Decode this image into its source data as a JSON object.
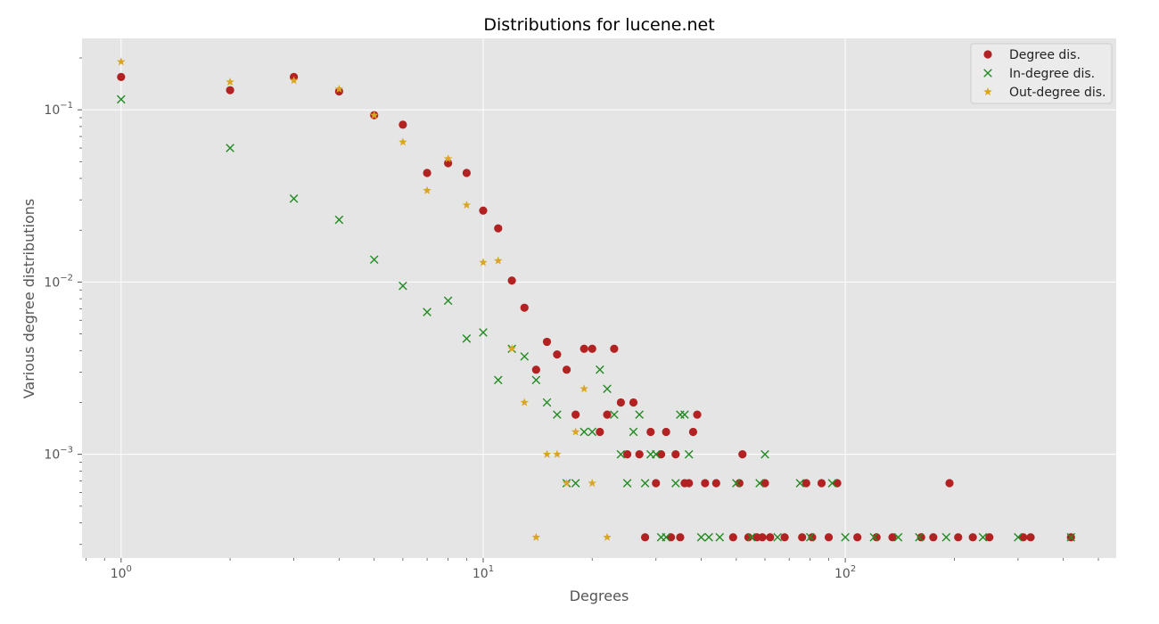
{
  "chart_data": {
    "type": "scatter",
    "title": "Distributions for lucene.net",
    "xlabel": "Degrees",
    "ylabel": "Various degree distributions",
    "xscale": "log",
    "yscale": "log",
    "xlim": [
      0.78,
      560
    ],
    "ylim": [
      0.00025,
      0.26
    ],
    "x_ticks": [
      {
        "value": 1,
        "base": "10",
        "exp": "0"
      },
      {
        "value": 10,
        "base": "10",
        "exp": "1"
      },
      {
        "value": 100,
        "base": "10",
        "exp": "2"
      }
    ],
    "y_ticks": [
      {
        "value": 0.001,
        "base": "10",
        "exp": "−3"
      },
      {
        "value": 0.01,
        "base": "10",
        "exp": "−2"
      },
      {
        "value": 0.1,
        "base": "10",
        "exp": "−1"
      }
    ],
    "grid": true,
    "legend_position": "top-right",
    "colors": {
      "background": "#e5e5e5",
      "grid": "#ffffff",
      "degree": "#b22222",
      "in_degree": "#228b22",
      "out_degree": "#daa520"
    },
    "series": [
      {
        "name": "Degree dis.",
        "marker": "circle",
        "points": [
          [
            1,
            0.155
          ],
          [
            2,
            0.13
          ],
          [
            3,
            0.155
          ],
          [
            4,
            0.128
          ],
          [
            5,
            0.093
          ],
          [
            6,
            0.082
          ],
          [
            7,
            0.043
          ],
          [
            8,
            0.049
          ],
          [
            9,
            0.043
          ],
          [
            10,
            0.026
          ],
          [
            11,
            0.0205
          ],
          [
            12,
            0.0102
          ],
          [
            13,
            0.0071
          ],
          [
            14,
            0.0031
          ],
          [
            15,
            0.0045
          ],
          [
            16,
            0.0038
          ],
          [
            17,
            0.0031
          ],
          [
            18,
            0.0017
          ],
          [
            19,
            0.0041
          ],
          [
            20,
            0.0041
          ],
          [
            21,
            0.00135
          ],
          [
            22,
            0.0017
          ],
          [
            23,
            0.0041
          ],
          [
            24,
            0.002
          ],
          [
            25,
            0.001
          ],
          [
            26,
            0.002
          ],
          [
            27,
            0.001
          ],
          [
            28,
            0.00033
          ],
          [
            29,
            0.00135
          ],
          [
            30,
            0.00068
          ],
          [
            31,
            0.001
          ],
          [
            32,
            0.00135
          ],
          [
            33,
            0.00033
          ],
          [
            34,
            0.001
          ],
          [
            35,
            0.00033
          ],
          [
            36,
            0.00068
          ],
          [
            37,
            0.00068
          ],
          [
            38,
            0.00135
          ],
          [
            39,
            0.0017
          ],
          [
            41,
            0.00068
          ],
          [
            44,
            0.00068
          ],
          [
            49,
            0.00033
          ],
          [
            51,
            0.00068
          ],
          [
            52,
            0.001
          ],
          [
            54,
            0.00033
          ],
          [
            57,
            0.00033
          ],
          [
            59,
            0.00033
          ],
          [
            60,
            0.00068
          ],
          [
            62,
            0.00033
          ],
          [
            68,
            0.00033
          ],
          [
            76,
            0.00033
          ],
          [
            78,
            0.00068
          ],
          [
            81,
            0.00033
          ],
          [
            86,
            0.00068
          ],
          [
            90,
            0.00033
          ],
          [
            95,
            0.00068
          ],
          [
            108,
            0.00033
          ],
          [
            122,
            0.00033
          ],
          [
            135,
            0.00033
          ],
          [
            162,
            0.00033
          ],
          [
            175,
            0.00033
          ],
          [
            194,
            0.00068
          ],
          [
            205,
            0.00033
          ],
          [
            225,
            0.00033
          ],
          [
            250,
            0.00033
          ],
          [
            310,
            0.00033
          ],
          [
            325,
            0.00033
          ],
          [
            420,
            0.00033
          ]
        ]
      },
      {
        "name": "In-degree dis.",
        "marker": "x",
        "points": [
          [
            1,
            0.115
          ],
          [
            2,
            0.06
          ],
          [
            3,
            0.0305
          ],
          [
            4,
            0.023
          ],
          [
            5,
            0.0135
          ],
          [
            6,
            0.0095
          ],
          [
            7,
            0.0067
          ],
          [
            8,
            0.0078
          ],
          [
            9,
            0.0047
          ],
          [
            10,
            0.0051
          ],
          [
            11,
            0.0027
          ],
          [
            12,
            0.0041
          ],
          [
            13,
            0.0037
          ],
          [
            14,
            0.0027
          ],
          [
            15,
            0.002
          ],
          [
            16,
            0.0017
          ],
          [
            17,
            0.00068
          ],
          [
            18,
            0.00068
          ],
          [
            19,
            0.00135
          ],
          [
            20,
            0.00135
          ],
          [
            21,
            0.0031
          ],
          [
            22,
            0.0024
          ],
          [
            23,
            0.0017
          ],
          [
            24,
            0.001
          ],
          [
            25,
            0.00068
          ],
          [
            26,
            0.00135
          ],
          [
            27,
            0.0017
          ],
          [
            28,
            0.00068
          ],
          [
            29,
            0.001
          ],
          [
            30,
            0.001
          ],
          [
            31,
            0.00033
          ],
          [
            32,
            0.00033
          ],
          [
            34,
            0.00068
          ],
          [
            35,
            0.0017
          ],
          [
            36,
            0.0017
          ],
          [
            37,
            0.001
          ],
          [
            40,
            0.00033
          ],
          [
            42,
            0.00033
          ],
          [
            45,
            0.00033
          ],
          [
            50,
            0.00068
          ],
          [
            55,
            0.00033
          ],
          [
            58,
            0.00068
          ],
          [
            60,
            0.001
          ],
          [
            65,
            0.00033
          ],
          [
            75,
            0.00068
          ],
          [
            80,
            0.00033
          ],
          [
            92,
            0.00068
          ],
          [
            100,
            0.00033
          ],
          [
            120,
            0.00033
          ],
          [
            140,
            0.00033
          ],
          [
            160,
            0.00033
          ],
          [
            190,
            0.00033
          ],
          [
            240,
            0.00033
          ],
          [
            300,
            0.00033
          ],
          [
            420,
            0.00033
          ]
        ]
      },
      {
        "name": "Out-degree dis.",
        "marker": "star",
        "points": [
          [
            1,
            0.19
          ],
          [
            2,
            0.145
          ],
          [
            3,
            0.148
          ],
          [
            4,
            0.132
          ],
          [
            5,
            0.093
          ],
          [
            6,
            0.065
          ],
          [
            7,
            0.034
          ],
          [
            8,
            0.052
          ],
          [
            9,
            0.028
          ],
          [
            10,
            0.013
          ],
          [
            11,
            0.0133
          ],
          [
            12,
            0.0041
          ],
          [
            13,
            0.002
          ],
          [
            14,
            0.00033
          ],
          [
            15,
            0.001
          ],
          [
            16,
            0.001
          ],
          [
            17,
            0.00068
          ],
          [
            18,
            0.00135
          ],
          [
            19,
            0.0024
          ],
          [
            20,
            0.00068
          ],
          [
            22,
            0.00033
          ]
        ]
      }
    ]
  }
}
